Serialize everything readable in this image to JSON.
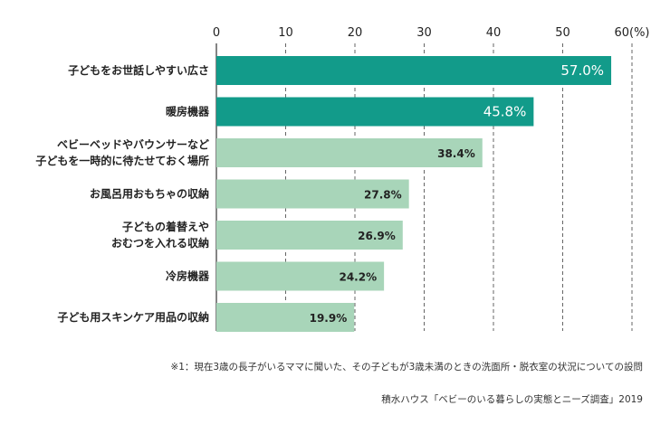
{
  "chart_data": {
    "type": "bar",
    "orientation": "horizontal",
    "categories": [
      [
        "子どもをお世話しやすい広さ"
      ],
      [
        "暖房機器"
      ],
      [
        "ベビーベッドやバウンサーなど",
        "子どもを一時的に待たせておく場所"
      ],
      [
        "お風呂用おもちゃの収納"
      ],
      [
        "子どもの着替えや",
        "おむつを入れる収納"
      ],
      [
        "冷房機器"
      ],
      [
        "子ども用スキンケア用品の収納"
      ]
    ],
    "values": [
      57.0,
      45.8,
      38.4,
      27.8,
      26.9,
      24.2,
      19.9
    ],
    "value_labels": [
      "57.0%",
      "45.8%",
      "38.4%",
      "27.8%",
      "26.9%",
      "24.2%",
      "19.9%"
    ],
    "x_ticks": [
      "0",
      "10",
      "20",
      "30",
      "40",
      "50",
      "60(%)"
    ],
    "xlim": [
      0,
      60
    ],
    "grid": "vertical dashed",
    "colors": {
      "top": "#129b8a",
      "rest": "#a8d5b9"
    },
    "highlight_count": 2
  },
  "notes": {
    "footnote": "※1：現在3歳の長子がいるママに聞いた、その子どもが3歳未満のときの洗面所・脱衣室の状況についての設問",
    "source": "積水ハウス「ベビーのいる暮らしの実態とニーズ調査」2019"
  }
}
